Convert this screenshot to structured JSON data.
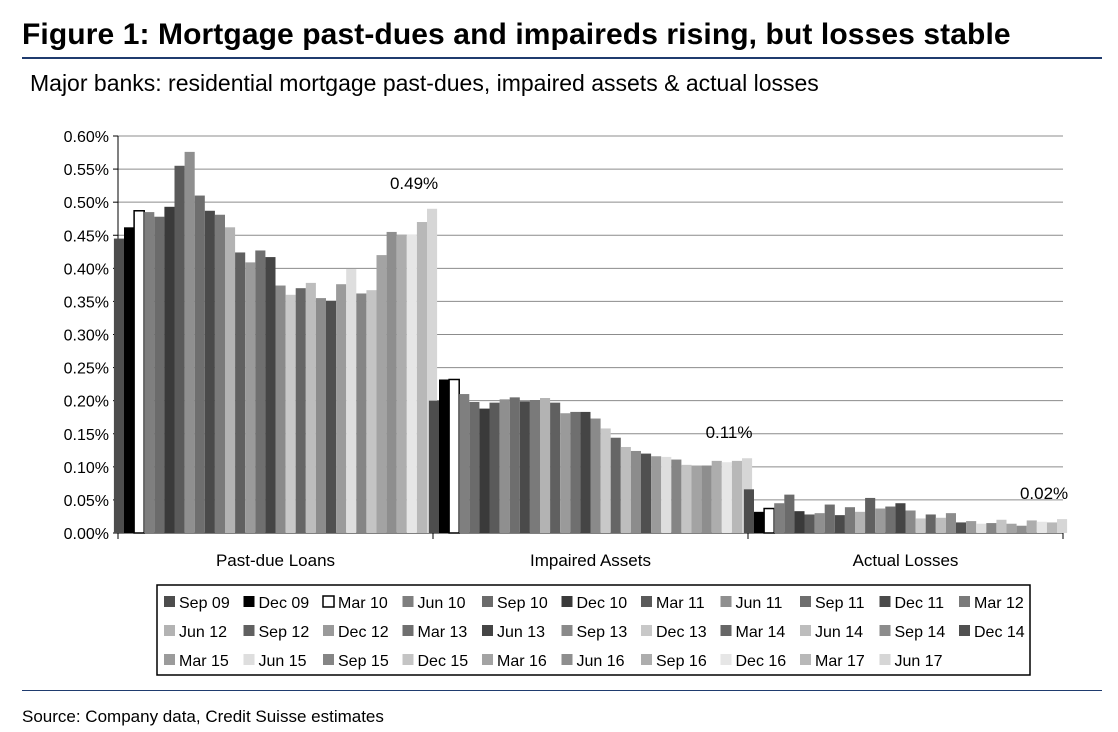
{
  "figure": {
    "title": "Figure 1: Mortgage past-dues and impaireds rising, but losses stable",
    "subtitle": "Major banks: residential mortgage past-dues, impaired assets & actual losses",
    "source": "Source: Company data, Credit Suisse estimates"
  },
  "chart_data": {
    "type": "bar",
    "title": "Major banks: residential mortgage past-dues, impaired assets & actual losses",
    "xlabel": "",
    "ylabel": "",
    "ylim": [
      0,
      0.6
    ],
    "yticks": [
      "0.00%",
      "0.05%",
      "0.10%",
      "0.15%",
      "0.20%",
      "0.25%",
      "0.30%",
      "0.35%",
      "0.40%",
      "0.45%",
      "0.50%",
      "0.55%",
      "0.60%"
    ],
    "grid": true,
    "legend_position": "bottom",
    "categories": [
      "Past-due Loans",
      "Impaired Assets",
      "Actual Losses"
    ],
    "annotations": [
      "0.49%",
      "0.11%",
      "0.02%"
    ],
    "series": [
      {
        "name": "Sep 09",
        "color": "#4d4d4d",
        "values": [
          0.445,
          0.2,
          0.066
        ]
      },
      {
        "name": "Dec 09",
        "color": "#000000",
        "values": [
          0.462,
          0.232,
          0.032
        ]
      },
      {
        "name": "Mar 10",
        "color": "#ffffff",
        "values": [
          0.487,
          0.232,
          0.037
        ]
      },
      {
        "name": "Jun 10",
        "color": "#7f7f7f",
        "values": [
          0.485,
          0.21,
          0.045
        ]
      },
      {
        "name": "Sep 10",
        "color": "#6b6b6b",
        "values": [
          0.478,
          0.198,
          0.058
        ]
      },
      {
        "name": "Dec 10",
        "color": "#3a3a3a",
        "values": [
          0.493,
          0.188,
          0.033
        ]
      },
      {
        "name": "Mar 11",
        "color": "#5a5a5a",
        "values": [
          0.555,
          0.197,
          0.028
        ]
      },
      {
        "name": "Jun 11",
        "color": "#8f8f8f",
        "values": [
          0.576,
          0.202,
          0.03
        ]
      },
      {
        "name": "Sep 11",
        "color": "#6e6e6e",
        "values": [
          0.51,
          0.205,
          0.043
        ]
      },
      {
        "name": "Dec 11",
        "color": "#4a4a4a",
        "values": [
          0.487,
          0.199,
          0.027
        ]
      },
      {
        "name": "Mar 12",
        "color": "#7a7a7a",
        "values": [
          0.481,
          0.201,
          0.039
        ]
      },
      {
        "name": "Jun 12",
        "color": "#b3b3b3",
        "values": [
          0.462,
          0.204,
          0.032
        ]
      },
      {
        "name": "Sep 12",
        "color": "#606060",
        "values": [
          0.424,
          0.197,
          0.053
        ]
      },
      {
        "name": "Dec 12",
        "color": "#9a9a9a",
        "values": [
          0.409,
          0.181,
          0.037
        ]
      },
      {
        "name": "Mar 13",
        "color": "#6f6f6f",
        "values": [
          0.427,
          0.183,
          0.04
        ]
      },
      {
        "name": "Jun 13",
        "color": "#454545",
        "values": [
          0.417,
          0.183,
          0.045
        ]
      },
      {
        "name": "Sep 13",
        "color": "#8a8a8a",
        "values": [
          0.374,
          0.173,
          0.034
        ]
      },
      {
        "name": "Dec 13",
        "color": "#c8c8c8",
        "values": [
          0.36,
          0.158,
          0.022
        ]
      },
      {
        "name": "Mar 14",
        "color": "#666666",
        "values": [
          0.37,
          0.144,
          0.028
        ]
      },
      {
        "name": "Jun 14",
        "color": "#bdbdbd",
        "values": [
          0.378,
          0.13,
          0.023
        ]
      },
      {
        "name": "Sep 14",
        "color": "#8c8c8c",
        "values": [
          0.355,
          0.124,
          0.03
        ]
      },
      {
        "name": "Dec 14",
        "color": "#505050",
        "values": [
          0.351,
          0.12,
          0.016
        ]
      },
      {
        "name": "Mar 15",
        "color": "#9b9b9b",
        "values": [
          0.376,
          0.116,
          0.018
        ]
      },
      {
        "name": "Jun 15",
        "color": "#dedede",
        "values": [
          0.399,
          0.115,
          0.014
        ]
      },
      {
        "name": "Sep 15",
        "color": "#858585",
        "values": [
          0.362,
          0.111,
          0.015
        ]
      },
      {
        "name": "Dec 15",
        "color": "#c4c4c4",
        "values": [
          0.367,
          0.103,
          0.02
        ]
      },
      {
        "name": "Mar 16",
        "color": "#a3a3a3",
        "values": [
          0.42,
          0.102,
          0.014
        ]
      },
      {
        "name": "Jun 16",
        "color": "#8e8e8e",
        "values": [
          0.455,
          0.102,
          0.011
        ]
      },
      {
        "name": "Sep 16",
        "color": "#adadad",
        "values": [
          0.451,
          0.109,
          0.019
        ]
      },
      {
        "name": "Dec 16",
        "color": "#e6e6e6",
        "values": [
          0.451,
          0.107,
          0.017
        ]
      },
      {
        "name": "Mar 17",
        "color": "#b8b8b8",
        "values": [
          0.47,
          0.109,
          0.016
        ]
      },
      {
        "name": "Jun 17",
        "color": "#d6d6d6",
        "values": [
          0.49,
          0.113,
          0.021
        ]
      }
    ]
  }
}
